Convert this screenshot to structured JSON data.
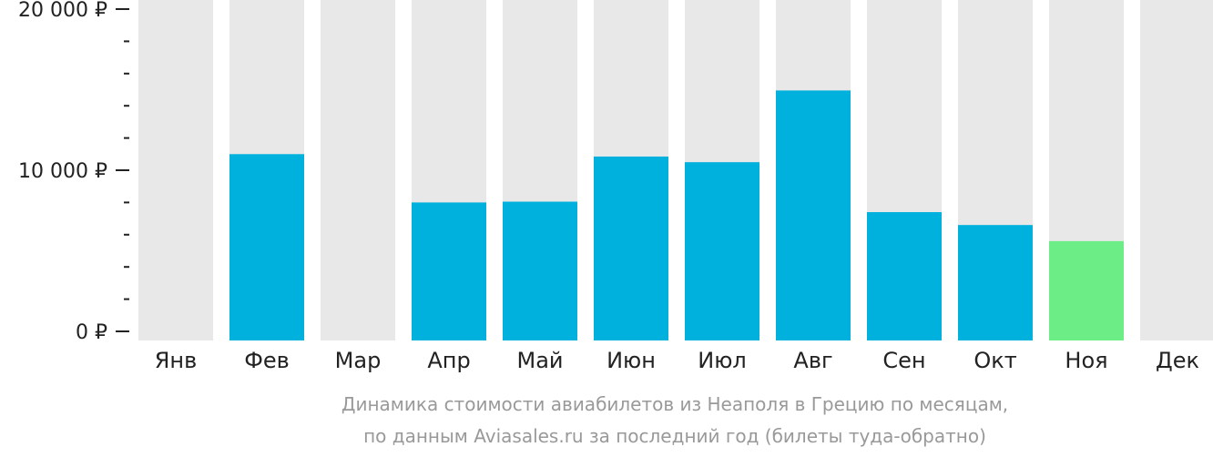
{
  "chart_data": {
    "type": "bar",
    "categories": [
      "Янв",
      "Фев",
      "Мар",
      "Апр",
      "Май",
      "Июн",
      "Июл",
      "Авг",
      "Сен",
      "Окт",
      "Ноя",
      "Дек"
    ],
    "values": [
      null,
      11000,
      null,
      8000,
      8050,
      10850,
      10500,
      14950,
      7400,
      6600,
      5600,
      null
    ],
    "ylim": [
      0,
      20000
    ],
    "yticks": [
      {
        "value": 0,
        "label": "0 ₽"
      },
      {
        "value": 10000,
        "label": "10 000 ₽"
      },
      {
        "value": 20000,
        "label": "20 000 ₽"
      }
    ],
    "minor_ticks": [
      2000,
      4000,
      6000,
      8000,
      12000,
      14000,
      16000,
      18000
    ],
    "grid": false,
    "colors": {
      "bar": "#00b1dd",
      "highlight": "#6ced86",
      "background_bar": "#e8e8e8",
      "text": "#222222",
      "axis": "#222222"
    },
    "highlight_category": "Ноя"
  },
  "caption": {
    "line1": "Динамика стоимости авиабилетов из Неаполя в Грецию по месяцам,",
    "line2": "по данным Aviasales.ru за последний год (билеты туда-обратно)"
  }
}
